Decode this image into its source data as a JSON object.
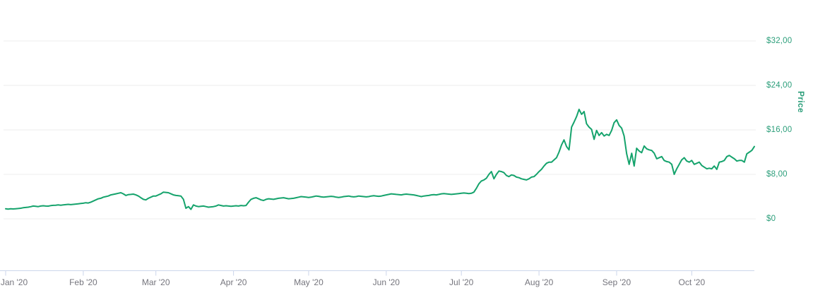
{
  "chart_data": {
    "type": "line",
    "title": "",
    "xlabel": "",
    "ylabel": "Price",
    "legend": "none",
    "grid": "horizontal",
    "ylim": [
      0,
      32
    ],
    "x_unit": "day-of-2020, Jan 1 through late Oct",
    "x_ticks": [
      {
        "label": "Jan '20",
        "day": 0
      },
      {
        "label": "Feb '20",
        "day": 31
      },
      {
        "label": "Mar '20",
        "day": 60
      },
      {
        "label": "Apr '20",
        "day": 91
      },
      {
        "label": "May '20",
        "day": 121
      },
      {
        "label": "Jun '20",
        "day": 152
      },
      {
        "label": "Jul '20",
        "day": 182
      },
      {
        "label": "Aug '20",
        "day": 213
      },
      {
        "label": "Sep '20",
        "day": 244
      },
      {
        "label": "Oct '20",
        "day": 274
      }
    ],
    "y_ticks": [
      {
        "label": "$0",
        "value": 0
      },
      {
        "label": "$8,00",
        "value": 8
      },
      {
        "label": "$16,00",
        "value": 16
      },
      {
        "label": "$24,00",
        "value": 24
      },
      {
        "label": "$32,00",
        "value": 32
      }
    ],
    "colors": {
      "line": "#15a36c",
      "axis_label_green": "#2b9e7a",
      "month_label_gray": "#75757d",
      "gridline": "#ececec",
      "axis_line": "#ccd6eb",
      "background": "#ffffff"
    },
    "series": [
      {
        "name": "Price",
        "start_day": 0,
        "values": [
          1.8,
          1.75,
          1.8,
          1.78,
          1.82,
          1.85,
          1.9,
          2.0,
          2.05,
          2.1,
          2.18,
          2.3,
          2.25,
          2.2,
          2.3,
          2.35,
          2.3,
          2.28,
          2.38,
          2.42,
          2.45,
          2.5,
          2.45,
          2.5,
          2.55,
          2.6,
          2.55,
          2.6,
          2.65,
          2.7,
          2.75,
          2.8,
          2.9,
          2.85,
          3.0,
          3.2,
          3.4,
          3.6,
          3.7,
          3.9,
          4.0,
          4.1,
          4.3,
          4.4,
          4.5,
          4.6,
          4.7,
          4.5,
          4.2,
          4.35,
          4.4,
          4.45,
          4.3,
          4.1,
          3.8,
          3.5,
          3.4,
          3.7,
          3.9,
          4.1,
          4.1,
          4.3,
          4.5,
          4.8,
          4.75,
          4.7,
          4.5,
          4.3,
          4.2,
          4.15,
          4.1,
          3.5,
          1.9,
          2.2,
          1.7,
          2.5,
          2.3,
          2.2,
          2.25,
          2.3,
          2.2,
          2.1,
          2.15,
          2.2,
          2.3,
          2.5,
          2.4,
          2.3,
          2.35,
          2.3,
          2.25,
          2.3,
          2.35,
          2.3,
          2.4,
          2.35,
          2.4,
          3.0,
          3.5,
          3.7,
          3.8,
          3.6,
          3.4,
          3.3,
          3.5,
          3.6,
          3.55,
          3.5,
          3.6,
          3.7,
          3.75,
          3.8,
          3.7,
          3.6,
          3.65,
          3.7,
          3.8,
          3.9,
          4.0,
          3.95,
          3.9,
          3.85,
          3.9,
          4.0,
          4.1,
          4.05,
          3.95,
          3.9,
          3.95,
          4.0,
          4.05,
          4.0,
          3.9,
          3.85,
          3.9,
          4.0,
          4.05,
          4.1,
          4.0,
          3.95,
          4.0,
          4.1,
          4.05,
          4.0,
          3.95,
          4.0,
          4.1,
          4.15,
          4.1,
          4.05,
          4.1,
          4.2,
          4.3,
          4.4,
          4.5,
          4.45,
          4.4,
          4.35,
          4.3,
          4.4,
          4.45,
          4.4,
          4.35,
          4.3,
          4.2,
          4.1,
          4.0,
          4.1,
          4.15,
          4.2,
          4.3,
          4.35,
          4.3,
          4.4,
          4.5,
          4.55,
          4.5,
          4.45,
          4.4,
          4.45,
          4.5,
          4.55,
          4.6,
          4.65,
          4.6,
          4.55,
          4.6,
          4.8,
          5.5,
          6.3,
          6.8,
          7.0,
          7.3,
          8.0,
          8.5,
          7.2,
          8.0,
          8.6,
          8.5,
          8.3,
          7.8,
          7.6,
          7.9,
          7.8,
          7.5,
          7.4,
          7.2,
          7.1,
          7.0,
          7.2,
          7.5,
          7.6,
          8.0,
          8.5,
          8.9,
          9.5,
          10.0,
          10.2,
          10.2,
          10.6,
          11.0,
          12.0,
          13.3,
          14.2,
          13.0,
          12.4,
          16.5,
          17.4,
          18.4,
          19.7,
          18.8,
          19.3,
          17.1,
          16.5,
          16.1,
          14.3,
          15.9,
          15.0,
          15.5,
          14.9,
          15.2,
          15.0,
          15.9,
          17.3,
          17.8,
          16.8,
          16.3,
          14.9,
          11.7,
          9.8,
          11.8,
          9.5,
          12.7,
          12.2,
          11.9,
          13.1,
          12.6,
          12.4,
          12.3,
          11.8,
          10.8,
          11.0,
          11.2,
          10.5,
          10.3,
          10.2,
          9.8,
          8.0,
          9.0,
          9.8,
          10.6,
          11.0,
          10.4,
          10.2,
          10.5,
          9.8,
          10.0,
          10.2,
          9.6,
          9.3,
          9.0,
          9.1,
          9.0,
          9.5,
          8.9,
          10.2,
          10.3,
          10.5,
          11.2,
          11.4,
          11.1,
          10.8,
          10.4,
          10.5,
          10.5,
          10.2,
          11.7,
          12.0,
          12.3,
          13.0
        ]
      }
    ]
  }
}
